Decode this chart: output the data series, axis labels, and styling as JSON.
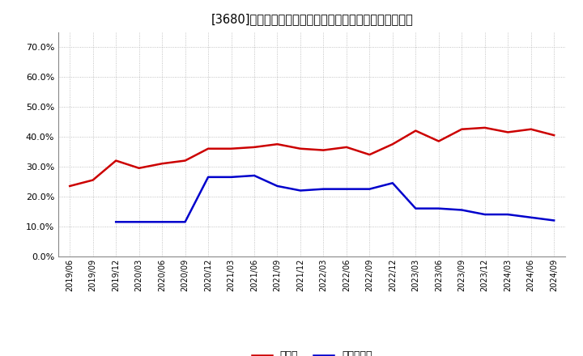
{
  "title": "[3680]　現頲金、有利子負債の総資産に対する比率の推移",
  "x_labels": [
    "2019/06",
    "2019/09",
    "2019/12",
    "2020/03",
    "2020/06",
    "2020/09",
    "2020/12",
    "2021/03",
    "2021/06",
    "2021/09",
    "2021/12",
    "2022/03",
    "2022/06",
    "2022/09",
    "2022/12",
    "2023/03",
    "2023/06",
    "2023/09",
    "2023/12",
    "2024/03",
    "2024/06",
    "2024/09"
  ],
  "cash_values": [
    0.235,
    0.255,
    0.32,
    0.295,
    0.31,
    0.32,
    0.36,
    0.36,
    0.365,
    0.375,
    0.36,
    0.355,
    0.365,
    0.34,
    0.375,
    0.42,
    0.385,
    0.425,
    0.43,
    0.415,
    0.425,
    0.405
  ],
  "debt_values": [
    null,
    null,
    0.115,
    0.115,
    0.115,
    0.115,
    0.265,
    0.265,
    0.27,
    0.235,
    0.22,
    0.225,
    0.225,
    0.225,
    0.245,
    0.16,
    0.16,
    0.155,
    0.14,
    0.14,
    0.13,
    0.12
  ],
  "cash_color": "#cc0000",
  "debt_color": "#0000cc",
  "background_color": "#ffffff",
  "grid_color": "#aaaaaa",
  "ylim": [
    0.0,
    0.75
  ],
  "yticks": [
    0.0,
    0.1,
    0.2,
    0.3,
    0.4,
    0.5,
    0.6,
    0.7
  ],
  "legend_cash": "現頲金",
  "legend_debt": "有利子負債",
  "line_width": 1.8
}
